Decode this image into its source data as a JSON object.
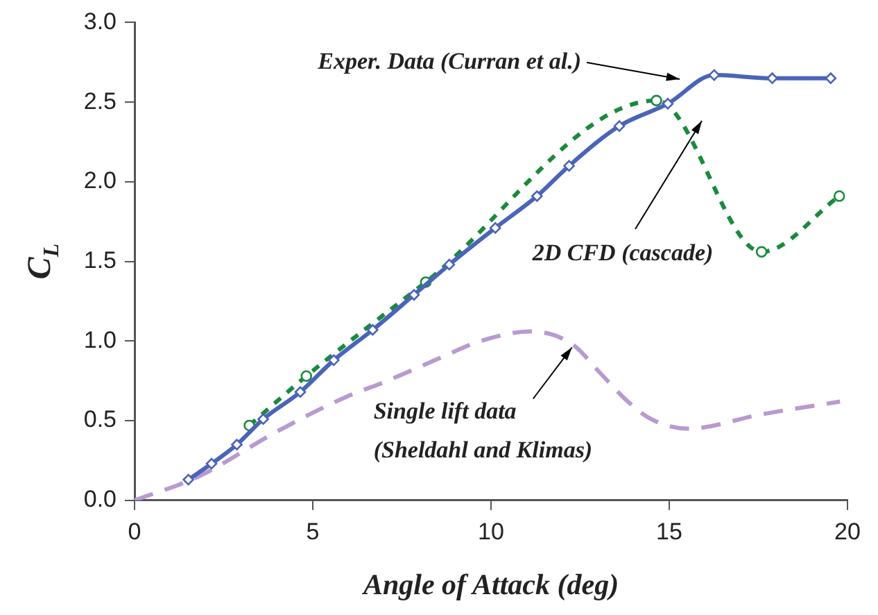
{
  "chart_data": {
    "type": "line",
    "xlabel": "Angle of Attack (deg)",
    "ylabel": "C$_{L}$",
    "xlim": [
      0,
      20
    ],
    "xticks": [
      0,
      5,
      10,
      15,
      20
    ],
    "ylim": [
      0,
      3
    ],
    "yticks": [
      {
        "value": 0,
        "label": "0.0"
      },
      {
        "value": 0.5,
        "label": "0.5"
      },
      {
        "value": 1,
        "label": "1.0"
      },
      {
        "value": 1.5,
        "label": "1.5"
      },
      {
        "value": 2,
        "label": "2.0"
      },
      {
        "value": 2.5,
        "label": "2.5"
      },
      {
        "value": 3,
        "label": "3.0"
      }
    ],
    "grid": false,
    "legend": false,
    "series": [
      {
        "color": "#4a64b8",
        "marker": "diamond",
        "line_style": "solid",
        "x": [
          1.51,
          2.16,
          2.87,
          3.61,
          4.65,
          5.59,
          6.68,
          7.84,
          8.83,
          10.12,
          11.29,
          12.19,
          13.6,
          14.96,
          16.26,
          17.89,
          19.53
        ],
        "values": [
          0.13,
          0.23,
          0.35,
          0.51,
          0.68,
          0.88,
          1.07,
          1.29,
          1.48,
          1.71,
          1.91,
          2.1,
          2.35,
          2.49,
          2.67,
          2.65,
          2.65
        ]
      },
      {
        "color": "#1a8a3c",
        "marker": "circle",
        "line_style": "dotted",
        "x": [
          3.22,
          4.82,
          8.17,
          14.64,
          17.59,
          19.77
        ],
        "values": [
          0.47,
          0.78,
          1.37,
          2.51,
          1.56,
          1.91
        ]
      },
      {
        "color": "#b89ad0",
        "marker": "none",
        "line_style": "dashed",
        "x": [
          0,
          1.8,
          3.98,
          5.94,
          6.98,
          8.53,
          9.7,
          11.12,
          12.28,
          13.06,
          13.84,
          14.49,
          15.52,
          17.59,
          19.79
        ],
        "values": [
          0,
          0.15,
          0.43,
          0.65,
          0.74,
          0.89,
          1.0,
          1.06,
          0.98,
          0.8,
          0.62,
          0.51,
          0.45,
          0.54,
          0.62
        ]
      }
    ],
    "annotations": [
      "Exper. Data (Curran et al.)",
      "2D CFD (cascade)",
      {
        "text": "Single lift data\n(Sheldahl and Klimas)",
        "x": 12.27,
        "y": 0.96
      }
    ]
  }
}
